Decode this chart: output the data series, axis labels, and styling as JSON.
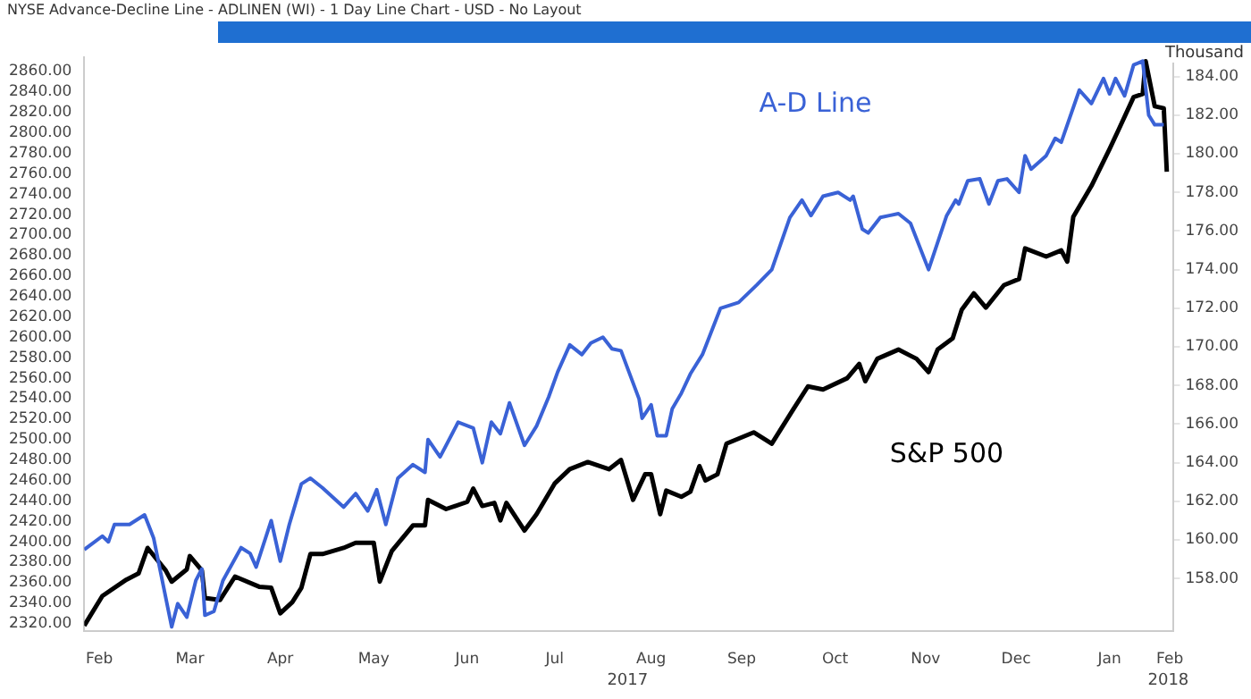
{
  "chart_data": {
    "type": "line",
    "title": "NYSE  Advance-Decline Line - ADLINEN (WI) - 1 Day Line Chart - USD - No Layout",
    "y2label": "Thousand",
    "annotations": [
      "2017",
      "2018"
    ],
    "xlim": [
      "2017-02-09",
      "2018-02-05"
    ],
    "xticks": [
      {
        "value": "2017-02-14",
        "label": "Feb"
      },
      {
        "value": "2017-03-16",
        "label": "Mar"
      },
      {
        "value": "2017-04-15",
        "label": "Apr"
      },
      {
        "value": "2017-05-16",
        "label": "May"
      },
      {
        "value": "2017-06-16",
        "label": "Jun"
      },
      {
        "value": "2017-07-15",
        "label": "Jul"
      },
      {
        "value": "2017-08-16",
        "label": "Aug"
      },
      {
        "value": "2017-09-15",
        "label": "Sep"
      },
      {
        "value": "2017-10-16",
        "label": "Oct"
      },
      {
        "value": "2017-11-15",
        "label": "Nov"
      },
      {
        "value": "2017-12-15",
        "label": "Dec"
      },
      {
        "value": "2018-01-15",
        "label": "Jan"
      },
      {
        "value": "2018-02-04",
        "label": "Feb"
      }
    ],
    "ylim": [
      2313,
      2874
    ],
    "yticks": [
      {
        "value": 2320,
        "label": "2320.00"
      },
      {
        "value": 2340,
        "label": "2340.00"
      },
      {
        "value": 2360,
        "label": "2360.00"
      },
      {
        "value": 2380,
        "label": "2380.00"
      },
      {
        "value": 2400,
        "label": "2400.00"
      },
      {
        "value": 2420,
        "label": "2420.00"
      },
      {
        "value": 2440,
        "label": "2440.00"
      },
      {
        "value": 2460,
        "label": "2460.00"
      },
      {
        "value": 2480,
        "label": "2480.00"
      },
      {
        "value": 2500,
        "label": "2500.00"
      },
      {
        "value": 2520,
        "label": "2520.00"
      },
      {
        "value": 2540,
        "label": "2540.00"
      },
      {
        "value": 2560,
        "label": "2560.00"
      },
      {
        "value": 2580,
        "label": "2580.00"
      },
      {
        "value": 2600,
        "label": "2600.00"
      },
      {
        "value": 2620,
        "label": "2620.00"
      },
      {
        "value": 2640,
        "label": "2640.00"
      },
      {
        "value": 2660,
        "label": "2660.00"
      },
      {
        "value": 2680,
        "label": "2680.00"
      },
      {
        "value": 2700,
        "label": "2700.00"
      },
      {
        "value": 2720,
        "label": "2720.00"
      },
      {
        "value": 2740,
        "label": "2740.00"
      },
      {
        "value": 2760,
        "label": "2760.00"
      },
      {
        "value": 2780,
        "label": "2780.00"
      },
      {
        "value": 2800,
        "label": "2800.00"
      },
      {
        "value": 2820,
        "label": "2820.00"
      },
      {
        "value": 2840,
        "label": "2840.00"
      },
      {
        "value": 2860,
        "label": "2860.00"
      }
    ],
    "y2lim": [
      155.3,
      185.0
    ],
    "y2ticks": [
      {
        "value": 158,
        "label": "158.00"
      },
      {
        "value": 160,
        "label": "160.00"
      },
      {
        "value": 162,
        "label": "162.00"
      },
      {
        "value": 164,
        "label": "164.00"
      },
      {
        "value": 166,
        "label": "166.00"
      },
      {
        "value": 168,
        "label": "168.00"
      },
      {
        "value": 170,
        "label": "170.00"
      },
      {
        "value": 172,
        "label": "172.00"
      },
      {
        "value": 174,
        "label": "174.00"
      },
      {
        "value": 176,
        "label": "176.00"
      },
      {
        "value": 178,
        "label": "178.00"
      },
      {
        "value": 180,
        "label": "180.00"
      },
      {
        "value": 182,
        "label": "182.00"
      },
      {
        "value": 184,
        "label": "184.00"
      }
    ],
    "line_style": "solid",
    "marker": "none",
    "series": [
      {
        "name": "A-D Line",
        "color": "#3a62d6",
        "axis": "y2",
        "x": [
          "2017-02-09",
          "2017-02-15",
          "2017-02-17",
          "2017-02-19",
          "2017-02-24",
          "2017-03-01",
          "2017-03-03",
          "2017-03-04",
          "2017-03-10",
          "2017-03-12",
          "2017-03-15",
          "2017-03-18",
          "2017-03-20",
          "2017-03-21",
          "2017-03-24",
          "2017-03-27",
          "2017-04-02",
          "2017-04-05",
          "2017-04-07",
          "2017-04-12",
          "2017-04-15",
          "2017-04-18",
          "2017-04-22",
          "2017-04-25",
          "2017-04-29",
          "2017-05-06",
          "2017-05-10",
          "2017-05-14",
          "2017-05-17",
          "2017-05-20",
          "2017-05-24",
          "2017-05-29",
          "2017-06-02",
          "2017-06-03",
          "2017-06-07",
          "2017-06-13",
          "2017-06-18",
          "2017-06-21",
          "2017-06-24",
          "2017-06-27",
          "2017-06-30",
          "2017-07-05",
          "2017-07-09",
          "2017-07-13",
          "2017-07-16",
          "2017-07-20",
          "2017-07-24",
          "2017-07-27",
          "2017-07-31",
          "2017-08-03",
          "2017-08-06",
          "2017-08-12",
          "2017-08-13",
          "2017-08-16",
          "2017-08-18",
          "2017-08-21",
          "2017-08-23",
          "2017-08-26",
          "2017-08-29",
          "2017-09-02",
          "2017-09-08",
          "2017-09-14",
          "2017-09-20",
          "2017-09-25",
          "2017-10-01",
          "2017-10-05",
          "2017-10-08",
          "2017-10-12",
          "2017-10-17",
          "2017-10-21",
          "2017-10-22",
          "2017-10-25",
          "2017-10-27",
          "2017-10-31",
          "2017-11-03",
          "2017-11-06",
          "2017-11-10",
          "2017-11-16",
          "2017-11-22",
          "2017-11-25",
          "2017-11-26",
          "2017-11-29",
          "2017-12-03",
          "2017-12-06",
          "2017-12-09",
          "2017-12-12",
          "2017-12-16",
          "2017-12-18",
          "2017-12-20",
          "2017-12-25",
          "2017-12-28",
          "2017-12-30",
          "2018-01-05",
          "2018-01-09",
          "2018-01-13",
          "2018-01-15",
          "2018-01-17",
          "2018-01-20",
          "2018-01-23",
          "2018-01-26",
          "2018-01-28",
          "2018-01-30",
          "2018-02-02"
        ],
        "values": [
          159.5,
          160.2,
          159.9,
          160.8,
          160.8,
          161.3,
          160.5,
          160.1,
          155.5,
          156.7,
          156.0,
          157.9,
          158.5,
          156.1,
          156.3,
          157.9,
          159.6,
          159.3,
          158.6,
          161.0,
          158.9,
          160.8,
          162.9,
          163.2,
          162.7,
          161.7,
          162.4,
          161.5,
          162.6,
          160.8,
          163.2,
          163.9,
          163.5,
          165.2,
          164.3,
          166.1,
          165.8,
          164.0,
          166.1,
          165.5,
          167.1,
          164.9,
          165.9,
          167.4,
          168.7,
          170.1,
          169.6,
          170.2,
          170.5,
          169.9,
          169.8,
          167.3,
          166.3,
          167.0,
          165.4,
          165.4,
          166.8,
          167.6,
          168.6,
          169.6,
          172.0,
          172.3,
          173.2,
          174.0,
          176.7,
          177.6,
          176.8,
          177.8,
          178.0,
          177.6,
          177.8,
          176.1,
          175.9,
          176.7,
          176.8,
          176.9,
          176.4,
          174.0,
          176.8,
          177.6,
          177.4,
          178.6,
          178.7,
          177.4,
          178.6,
          178.7,
          178.0,
          179.9,
          179.2,
          179.9,
          180.8,
          180.6,
          183.3,
          182.6,
          183.9,
          183.1,
          183.9,
          183.0,
          184.6,
          184.8,
          182.0,
          181.5,
          181.5
        ]
      },
      {
        "name": "S&P 500",
        "color": "#000000",
        "axis": "y",
        "x": [
          "2017-02-09",
          "2017-02-15",
          "2017-02-23",
          "2017-02-27",
          "2017-03-02",
          "2017-03-08",
          "2017-03-10",
          "2017-03-15",
          "2017-03-16",
          "2017-03-20",
          "2017-03-21",
          "2017-03-26",
          "2017-03-31",
          "2017-04-08",
          "2017-04-12",
          "2017-04-15",
          "2017-04-19",
          "2017-04-22",
          "2017-04-25",
          "2017-04-29",
          "2017-05-06",
          "2017-05-10",
          "2017-05-16",
          "2017-05-18",
          "2017-05-22",
          "2017-05-29",
          "2017-06-02",
          "2017-06-03",
          "2017-06-09",
          "2017-06-16",
          "2017-06-18",
          "2017-06-21",
          "2017-06-25",
          "2017-06-27",
          "2017-06-29",
          "2017-07-05",
          "2017-07-09",
          "2017-07-15",
          "2017-07-20",
          "2017-07-26",
          "2017-08-02",
          "2017-08-06",
          "2017-08-10",
          "2017-08-14",
          "2017-08-16",
          "2017-08-19",
          "2017-08-21",
          "2017-08-26",
          "2017-08-29",
          "2017-09-01",
          "2017-09-03",
          "2017-09-07",
          "2017-09-10",
          "2017-09-19",
          "2017-09-25",
          "2017-10-02",
          "2017-10-07",
          "2017-10-12",
          "2017-10-20",
          "2017-10-24",
          "2017-10-26",
          "2017-10-30",
          "2017-11-06",
          "2017-11-12",
          "2017-11-16",
          "2017-11-19",
          "2017-11-24",
          "2017-11-27",
          "2017-12-01",
          "2017-12-05",
          "2017-12-11",
          "2017-12-16",
          "2017-12-18",
          "2017-12-25",
          "2017-12-30",
          "2018-01-01",
          "2018-01-03",
          "2018-01-09",
          "2018-01-15",
          "2018-01-18",
          "2018-01-23",
          "2018-01-26",
          "2018-01-27",
          "2018-01-30",
          "2018-02-02",
          "2018-02-03"
        ],
        "values": [
          2318,
          2347,
          2363,
          2369,
          2394,
          2372,
          2361,
          2373,
          2386,
          2372,
          2345,
          2343,
          2366,
          2356,
          2355,
          2330,
          2341,
          2355,
          2388,
          2388,
          2394,
          2399,
          2399,
          2361,
          2391,
          2416,
          2416,
          2441,
          2432,
          2439,
          2452,
          2435,
          2438,
          2421,
          2438,
          2411,
          2427,
          2457,
          2471,
          2478,
          2471,
          2480,
          2441,
          2466,
          2466,
          2427,
          2450,
          2444,
          2449,
          2474,
          2460,
          2466,
          2496,
          2507,
          2496,
          2529,
          2552,
          2549,
          2560,
          2574,
          2557,
          2579,
          2588,
          2579,
          2566,
          2588,
          2599,
          2627,
          2643,
          2629,
          2651,
          2657,
          2687,
          2679,
          2685,
          2674,
          2718,
          2748,
          2784,
          2803,
          2835,
          2838,
          2870,
          2826,
          2824,
          2762
        ]
      }
    ]
  }
}
